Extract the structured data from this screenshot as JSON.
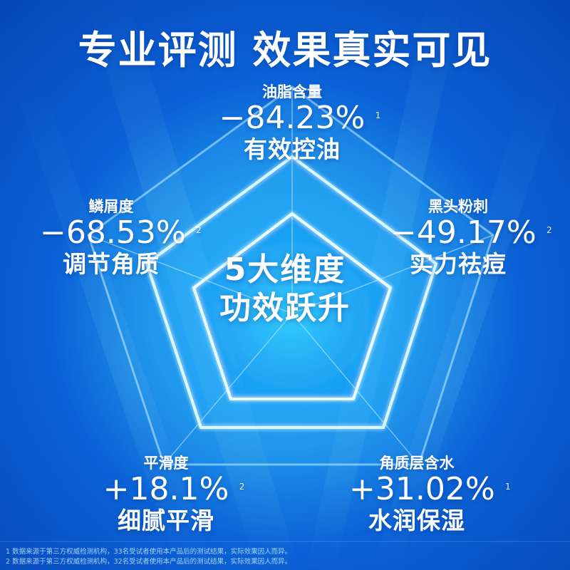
{
  "title": "专业评测  效果真实可见",
  "center": {
    "line1": "5大维度",
    "line2": "功效跃升"
  },
  "metrics": [
    {
      "name": "油脂含量",
      "value": "−84.23%",
      "note": "1",
      "desc": "有效控油"
    },
    {
      "name": "黑头粉刺",
      "value": "−49.17%",
      "note": "2",
      "desc": "实力祛痘"
    },
    {
      "name": "角质层含水",
      "value": "+31.02%",
      "note": "1",
      "desc": "水润保湿"
    },
    {
      "name": "平滑度",
      "value": "+18.1%",
      "note": "2",
      "desc": "细腻平滑"
    },
    {
      "name": "鳞屑度",
      "value": "−68.53%",
      "note": "2",
      "desc": "调节角质"
    }
  ],
  "footnotes": [
    "1 数据来源于第三方权威检测机构，33名受试者使用本产品后的测试结果，实际效果因人而异。",
    "2 数据来源于第三方权威检测机构，32名受试者使用本产品后的测试结果，实际效果因人而异。"
  ],
  "colors": {
    "bg_deep": "#0646b8",
    "bg_mid": "#0b62d6",
    "glow": "#6fe3ff",
    "text": "#ffffff"
  }
}
